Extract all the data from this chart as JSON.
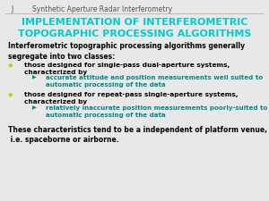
{
  "bg_color": "#e8e8e8",
  "header_j": "J",
  "header_title": "Synthetic Aperture Radar Interferometry",
  "header_color": "#555555",
  "header_fontsize": 5.5,
  "title_line1": "IMPLEMENTATION OF INTERFEROMETRIC",
  "title_line2": "TOPOGRAPHIC PROCESSING ALGORITHMS",
  "title_color": "#00cccc",
  "title_fontsize": 8.0,
  "intro_text": "Interferometric topographic processing algorithms generally\nsegregate into two classes:",
  "intro_color": "#000000",
  "intro_fontsize": 5.5,
  "bullet1_main": "those designed for single-pass dual-aperture systems,\ncharacterized by",
  "bullet1_sub": "accurate attitude and position measurements well suited to\nautomatic processing of the data",
  "bullet2_main": "those designed for repeat-pass single-aperture systems,\ncharacterized by",
  "bullet2_sub": "relatively inaccurate position measurements poorly-suited to\nautomatic processing of the data",
  "bullet_color": "#000000",
  "bullet_fontsize": 5.3,
  "sub_bullet_color": "#008888",
  "sub_bullet_fontsize": 5.1,
  "bullet_marker_color": "#cccc00",
  "sub_marker_color": "#008888",
  "footer_text": "These characteristics tend to be a independent of platform venue,\n i.e. spaceborne or airborne.",
  "footer_color": "#000000",
  "footer_fontsize": 5.5
}
